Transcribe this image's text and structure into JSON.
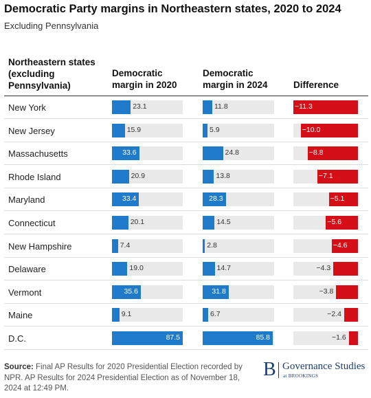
{
  "chart_data": {
    "type": "table",
    "title": "Democratic Party margins in Northeastern states, 2020 to 2024",
    "subtitle": "Excluding Pennsylvania",
    "columns": [
      "Northeastern states (excluding Pennsylvania)",
      "Democratic margin in 2020",
      "Democratic margin in 2024",
      "Difference"
    ],
    "rows": [
      {
        "state": "New York",
        "m2020": 23.1,
        "m2024": 11.8,
        "diff": -11.3
      },
      {
        "state": "New Jersey",
        "m2020": 15.9,
        "m2024": 5.9,
        "diff": -10.0
      },
      {
        "state": "Massachusetts",
        "m2020": 33.6,
        "m2024": 24.8,
        "diff": -8.8
      },
      {
        "state": "Rhode Island",
        "m2020": 20.9,
        "m2024": 13.8,
        "diff": -7.1
      },
      {
        "state": "Maryland",
        "m2020": 33.4,
        "m2024": 28.3,
        "diff": -5.1
      },
      {
        "state": "Connecticut",
        "m2020": 20.1,
        "m2024": 14.5,
        "diff": -5.6
      },
      {
        "state": "New Hampshire",
        "m2020": 7.4,
        "m2024": 2.8,
        "diff": -4.6
      },
      {
        "state": "Delaware",
        "m2020": 19.0,
        "m2024": 14.7,
        "diff": -4.3
      },
      {
        "state": "Vermont",
        "m2020": 35.6,
        "m2024": 31.8,
        "diff": -3.8
      },
      {
        "state": "Maine",
        "m2020": 9.1,
        "m2024": 6.7,
        "diff": -2.4
      },
      {
        "state": "D.C.",
        "m2020": 87.5,
        "m2024": 85.8,
        "diff": -1.6
      }
    ],
    "margin_scale_max": 87.5,
    "difference_scale_max": 11.3,
    "colors": {
      "margin": "#1f7ac9",
      "difference": "#d50f17",
      "track": "#e9e9e9"
    }
  },
  "footer": {
    "source_label": "Source:",
    "source_text": "Final AP Results for 2020 Presidential Election recorded by NPR. AP Results for 2024 Presidential Election as of November 18, 2024 at 12:49 PM."
  },
  "logo": {
    "letter": "B",
    "name": "Governance Studies",
    "sub": "at BROOKINGS"
  }
}
